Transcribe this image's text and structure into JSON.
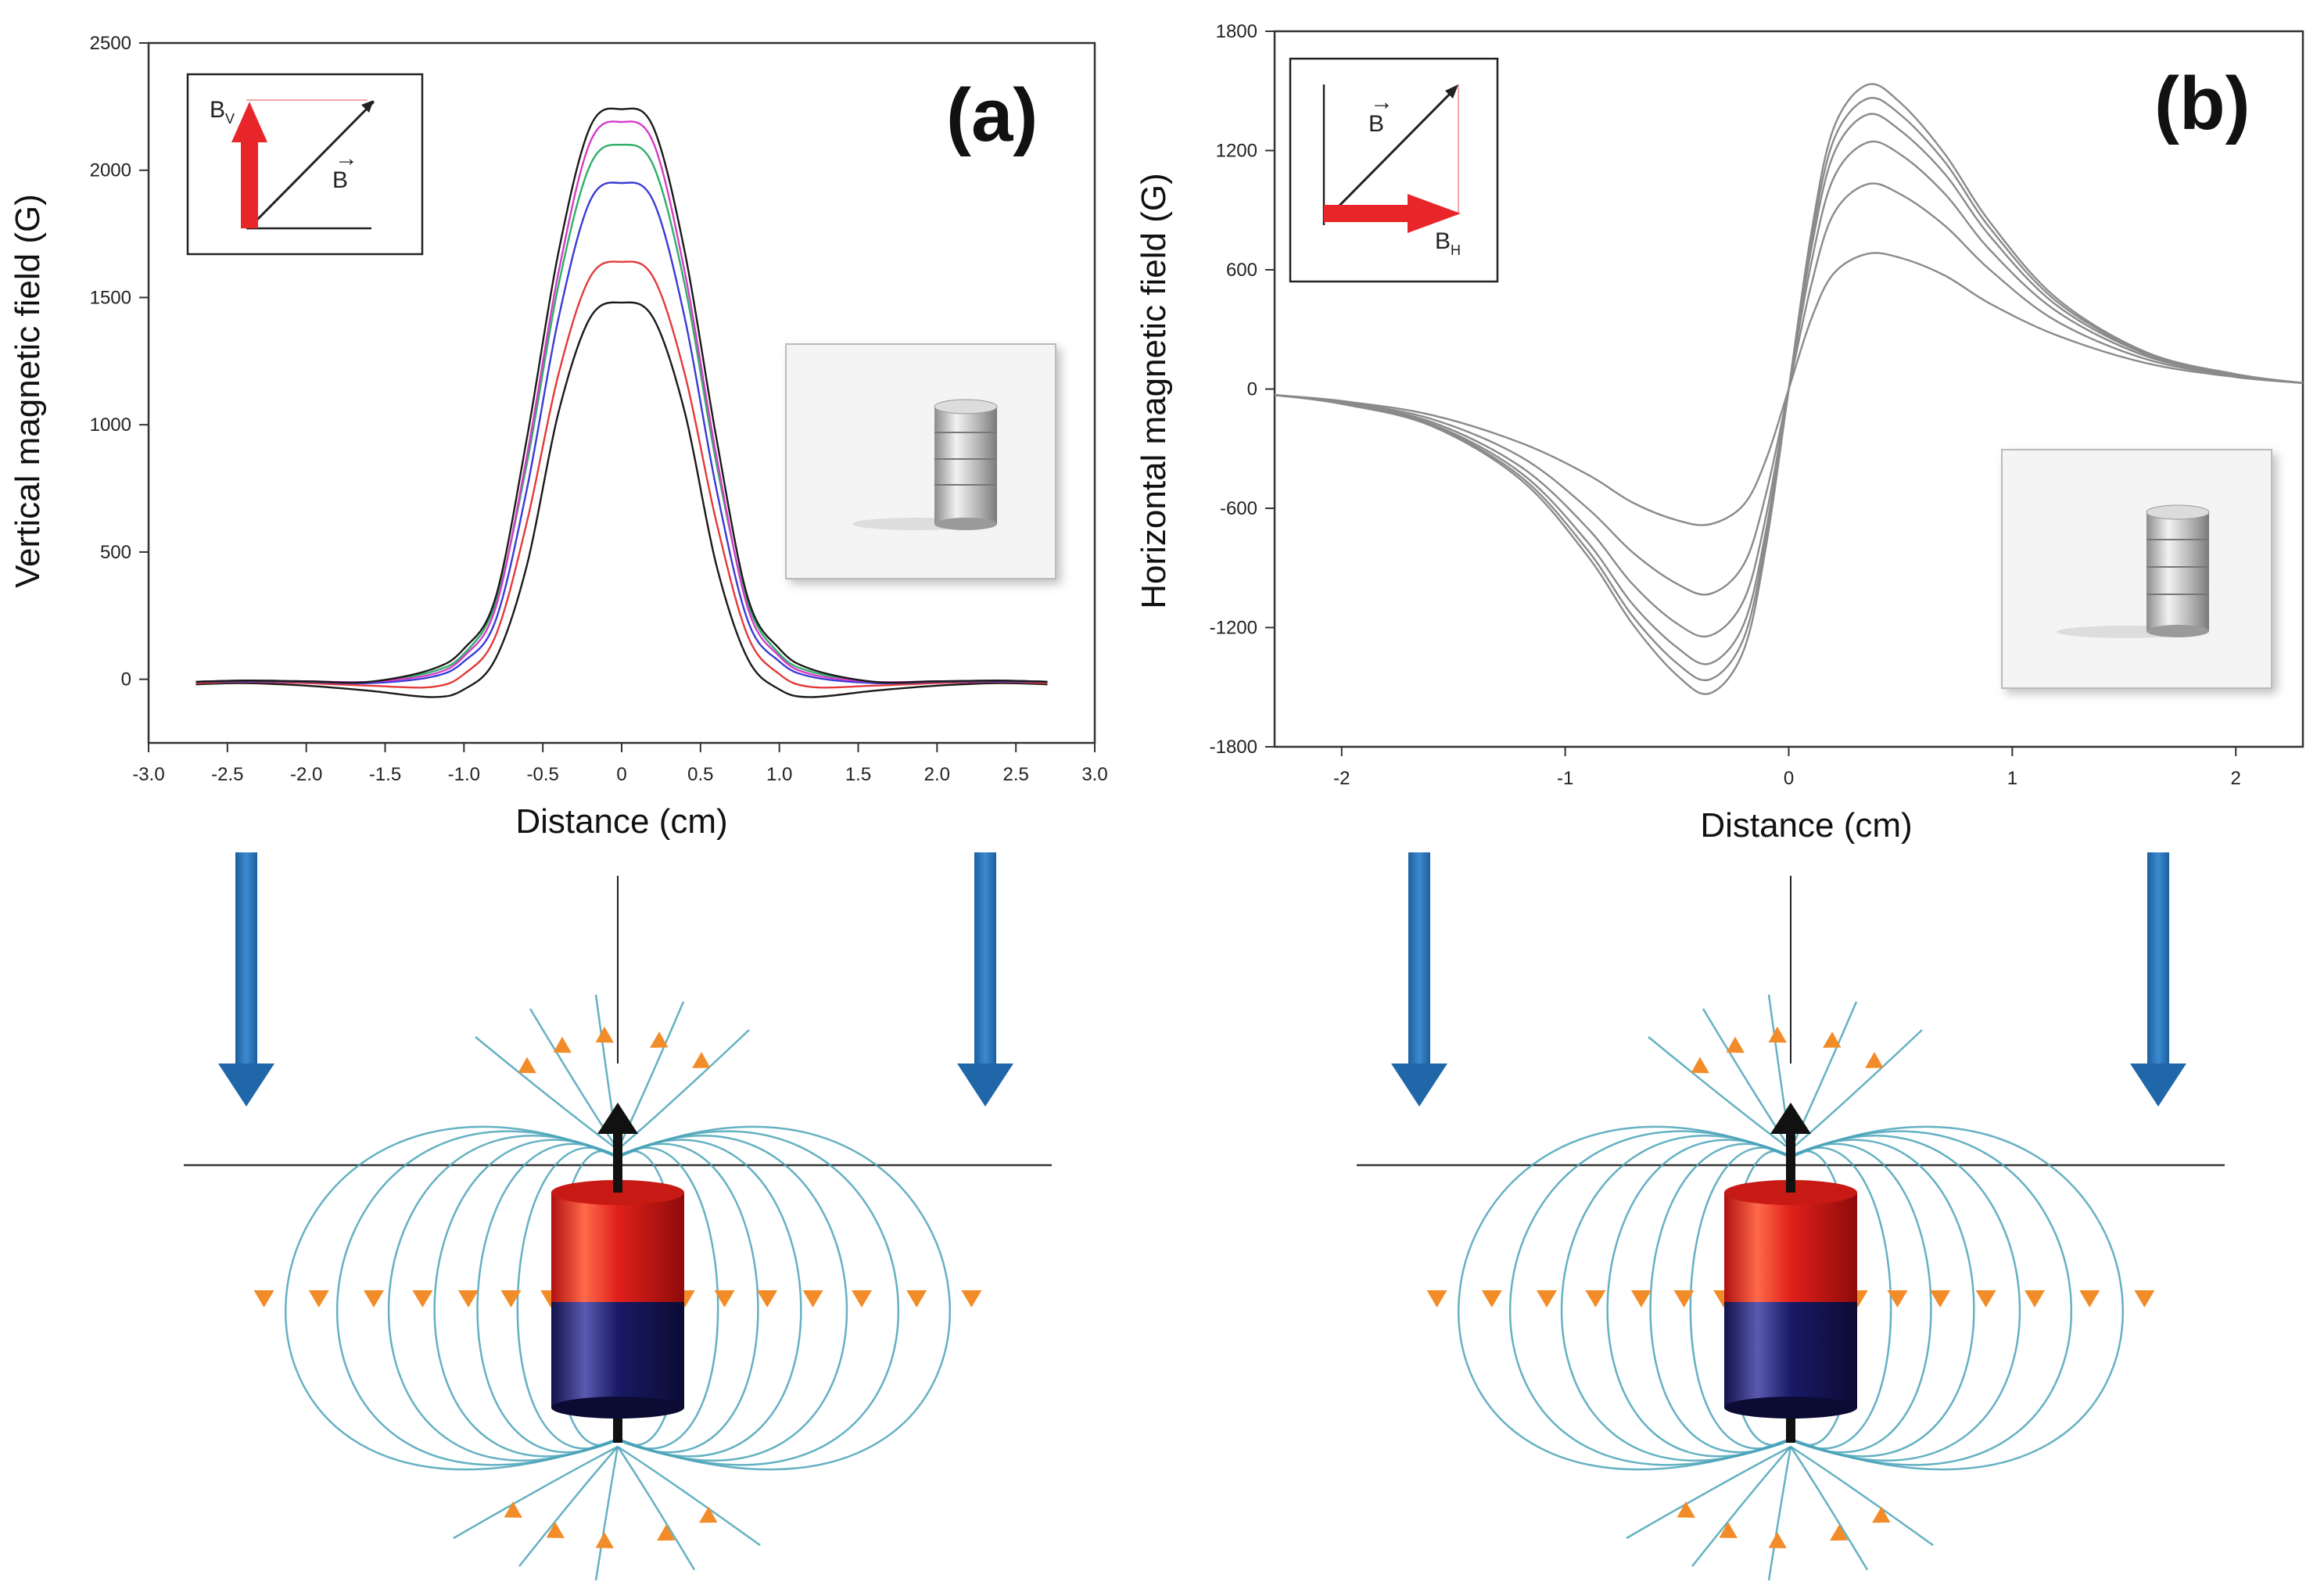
{
  "chart_data": [
    {
      "type": "line",
      "panel_label": "(a)",
      "xlabel": "Distance (cm)",
      "ylabel": "Vertical magnetic field (G)",
      "xlim": [
        -3.0,
        3.0
      ],
      "ylim": [
        -250,
        2500
      ],
      "xticks": [
        "-3.0",
        "-2.5",
        "-2.0",
        "-1.5",
        "-1.0",
        "-0.5",
        "0",
        "0.5",
        "1.0",
        "1.5",
        "2.0",
        "2.5",
        "3.0"
      ],
      "yticks": [
        "0",
        "500",
        "1000",
        "1500",
        "2000",
        "2500"
      ],
      "x": [
        -2.7,
        -2.4,
        -2.0,
        -1.6,
        -1.2,
        -1.0,
        -0.8,
        -0.6,
        -0.4,
        -0.2,
        0.0,
        0.2,
        0.4,
        0.6,
        0.8,
        1.0,
        1.2,
        1.6,
        2.0,
        2.4,
        2.7
      ],
      "series": [
        {
          "name": "black",
          "color": "#1a1a1a",
          "values": [
            -20,
            -15,
            -25,
            -45,
            -70,
            -40,
            80,
            450,
            1050,
            1420,
            1480,
            1420,
            1050,
            450,
            80,
            -40,
            -70,
            -45,
            -25,
            -15,
            -20
          ]
        },
        {
          "name": "red",
          "color": "#e23a3a",
          "values": [
            -15,
            -10,
            -15,
            -25,
            -30,
            20,
            170,
            620,
            1200,
            1580,
            1640,
            1580,
            1200,
            620,
            170,
            20,
            -30,
            -25,
            -15,
            -10,
            -15
          ]
        },
        {
          "name": "blue",
          "color": "#3b3bd6",
          "values": [
            -10,
            -8,
            -10,
            -15,
            10,
            70,
            230,
            750,
            1420,
            1880,
            1950,
            1880,
            1420,
            750,
            230,
            70,
            10,
            -15,
            -10,
            -8,
            -10
          ]
        },
        {
          "name": "green",
          "color": "#2fae6a",
          "values": [
            -10,
            -5,
            -8,
            -10,
            30,
            100,
            300,
            850,
            1550,
            2020,
            2100,
            2020,
            1550,
            850,
            300,
            100,
            30,
            -10,
            -8,
            -5,
            -10
          ]
        },
        {
          "name": "magenta",
          "color": "#d63bc8",
          "values": [
            -10,
            -5,
            -8,
            -10,
            20,
            90,
            280,
            880,
            1600,
            2110,
            2190,
            2110,
            1600,
            880,
            280,
            90,
            20,
            -10,
            -8,
            -5,
            -10
          ]
        },
        {
          "name": "black-top",
          "color": "#1a1a1a",
          "values": [
            -10,
            -5,
            -8,
            -10,
            40,
            120,
            320,
            950,
            1680,
            2170,
            2240,
            2170,
            1680,
            950,
            320,
            120,
            40,
            -10,
            -8,
            -5,
            -10
          ]
        }
      ],
      "inset_vector_labels": {
        "component": "B",
        "component_sub": "V",
        "field": "B"
      }
    },
    {
      "type": "line",
      "panel_label": "(b)",
      "xlabel": "Distance (cm)",
      "ylabel": "Horizontal magnetic field (G)",
      "xlim": [
        -2.3,
        2.3
      ],
      "ylim": [
        -1800,
        1800
      ],
      "xticks": [
        "-2",
        "-1",
        "0",
        "1",
        "2"
      ],
      "yticks": [
        "1800",
        "1200",
        "600",
        "0",
        "-600",
        "-1200",
        "-1800"
      ],
      "x": [
        -2.3,
        -2.0,
        -1.6,
        -1.2,
        -0.9,
        -0.7,
        -0.5,
        -0.35,
        -0.2,
        -0.1,
        0.0,
        0.1,
        0.2,
        0.35,
        0.5,
        0.7,
        0.9,
        1.2,
        1.6,
        2.0,
        2.3
      ],
      "series": [
        {
          "name": "c1",
          "color": "#8a8a8a",
          "values": [
            -30,
            -60,
            -130,
            -270,
            -430,
            -570,
            -660,
            -680,
            -580,
            -350,
            0,
            350,
            580,
            680,
            660,
            570,
            430,
            270,
            130,
            60,
            30
          ]
        },
        {
          "name": "c2",
          "color": "#8a8a8a",
          "values": [
            -30,
            -65,
            -150,
            -340,
            -600,
            -820,
            -980,
            -1030,
            -880,
            -520,
            0,
            520,
            880,
            1030,
            980,
            820,
            600,
            340,
            150,
            65,
            30
          ]
        },
        {
          "name": "c3",
          "color": "#8a8a8a",
          "values": [
            -30,
            -70,
            -165,
            -390,
            -700,
            -980,
            -1180,
            -1240,
            -1060,
            -630,
            0,
            630,
            1060,
            1240,
            1180,
            980,
            700,
            390,
            165,
            70,
            30
          ]
        },
        {
          "name": "c4",
          "color": "#8a8a8a",
          "values": [
            -30,
            -72,
            -175,
            -420,
            -770,
            -1080,
            -1300,
            -1380,
            -1180,
            -700,
            0,
            700,
            1180,
            1380,
            1300,
            1080,
            770,
            420,
            175,
            72,
            30
          ]
        },
        {
          "name": "c5",
          "color": "#8a8a8a",
          "values": [
            -30,
            -74,
            -180,
            -440,
            -810,
            -1140,
            -1380,
            -1460,
            -1250,
            -740,
            0,
            740,
            1250,
            1460,
            1380,
            1140,
            810,
            440,
            180,
            74,
            30
          ]
        },
        {
          "name": "c6",
          "color": "#8a8a8a",
          "values": [
            -30,
            -75,
            -185,
            -455,
            -840,
            -1180,
            -1440,
            -1530,
            -1310,
            -780,
            0,
            780,
            1310,
            1530,
            1440,
            1180,
            840,
            455,
            185,
            75,
            30
          ]
        }
      ],
      "inset_vector_labels": {
        "component": "B",
        "component_sub": "H",
        "field": "B"
      }
    }
  ]
}
